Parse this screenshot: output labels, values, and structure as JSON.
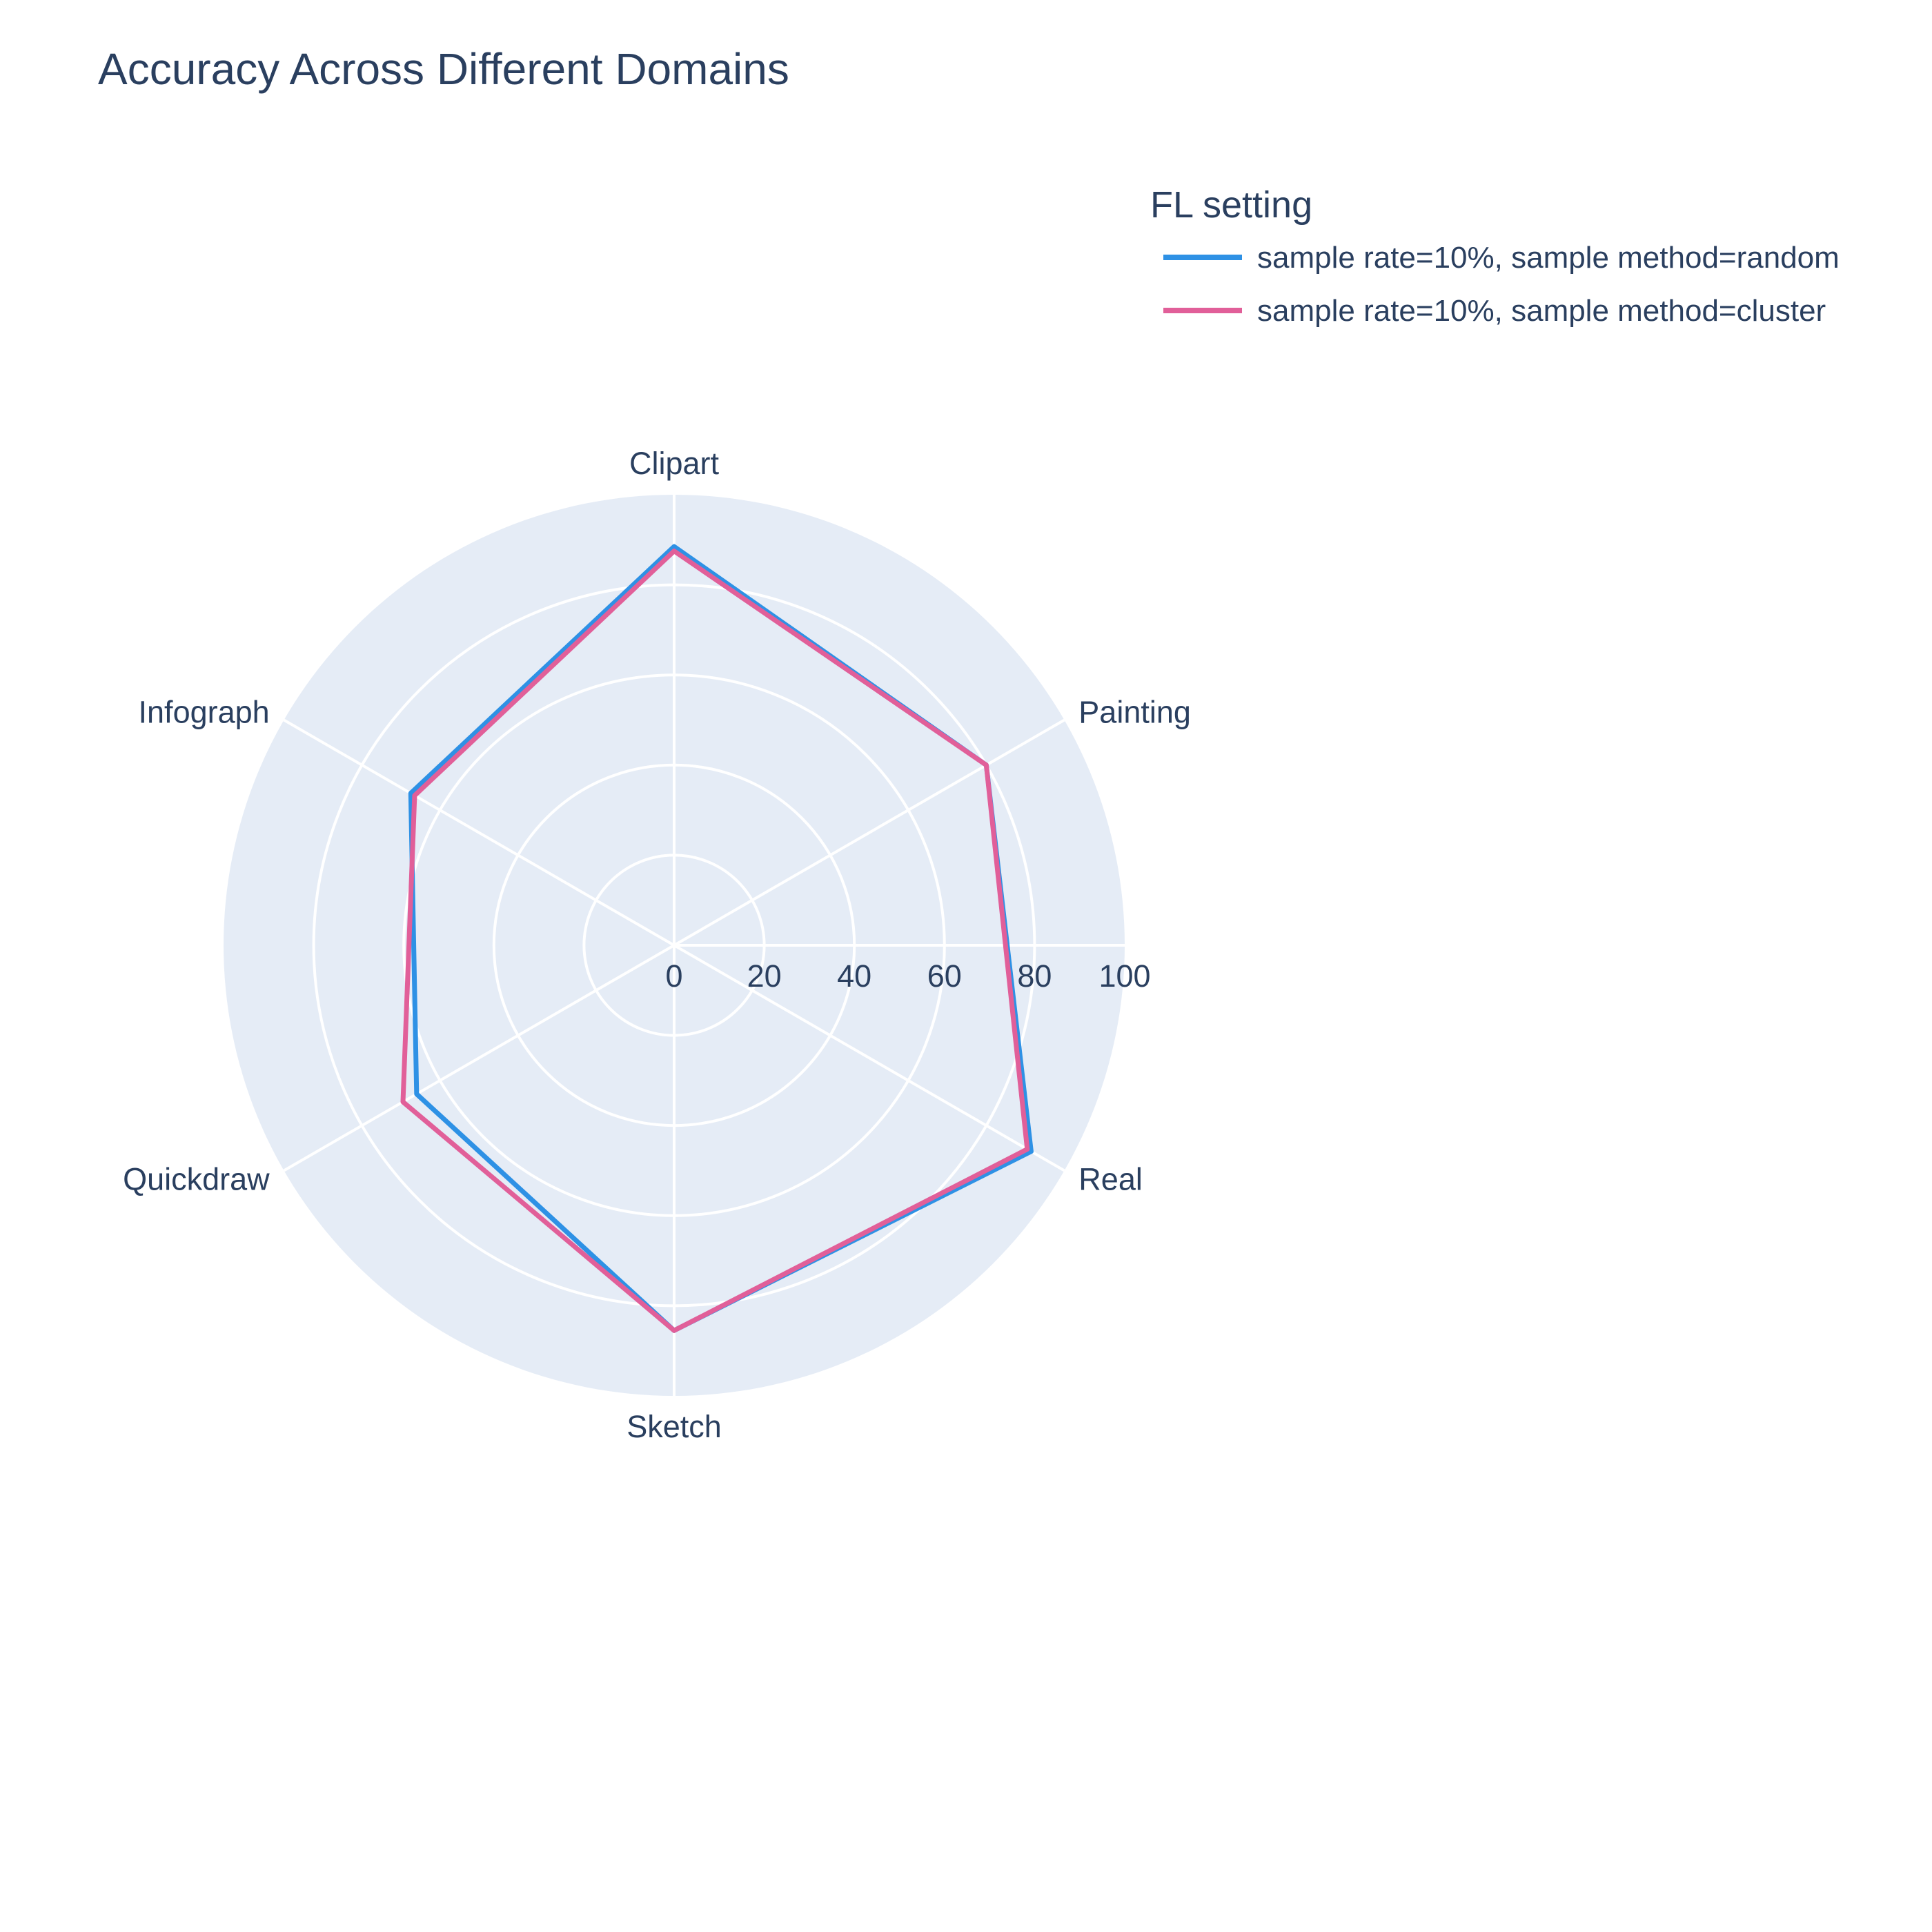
{
  "chart_data": {
    "type": "radar",
    "title": "Accuracy Across Different Domains",
    "categories": [
      "Clipart",
      "Painting",
      "Real",
      "Sketch",
      "Quickdraw",
      "Infograph"
    ],
    "radial_axis": {
      "range": [
        0,
        100
      ],
      "tick_labels": [
        "0",
        "20",
        "40",
        "60",
        "80",
        "100"
      ]
    },
    "legend": {
      "title": "FL setting",
      "placement": "top-right"
    },
    "series": [
      {
        "name": "sample rate=10%, sample method=random",
        "color": "#2e91e5",
        "values": [
          88.5,
          80,
          91.5,
          85.5,
          66,
          67.5
        ]
      },
      {
        "name": "sample rate=10%, sample method=cluster",
        "color": "#e15f99",
        "values": [
          87.5,
          80,
          90.5,
          85.5,
          69.5,
          66.5
        ]
      }
    ],
    "grid": true,
    "background_color": "#e5ecf6",
    "grid_color": "#ffffff"
  }
}
